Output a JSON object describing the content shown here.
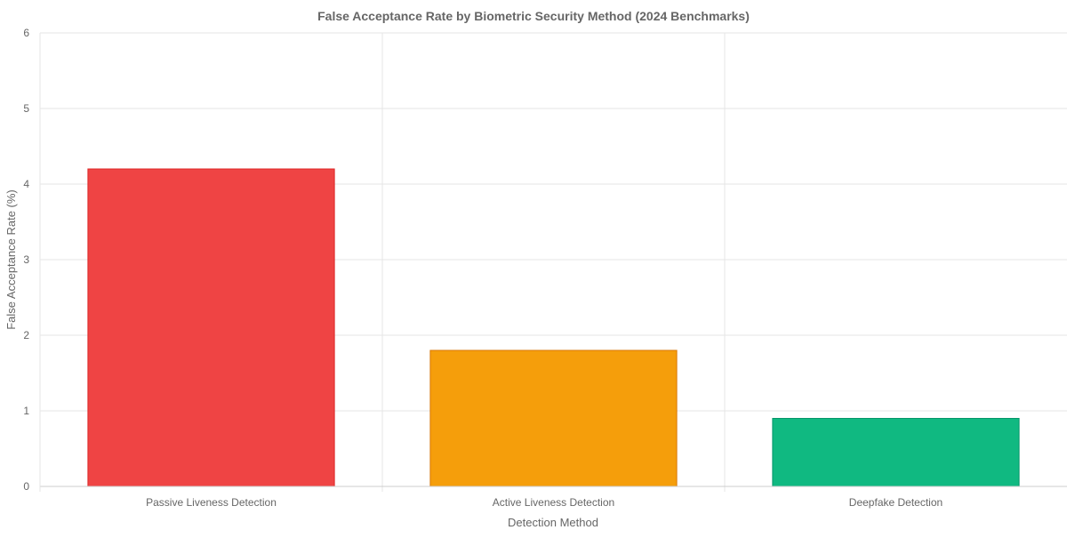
{
  "chart_data": {
    "type": "bar",
    "title": "False Acceptance Rate by Biometric Security Method (2024 Benchmarks)",
    "xlabel": "Detection Method",
    "ylabel": "False Acceptance Rate (%)",
    "categories": [
      "Passive Liveness Detection",
      "Active Liveness Detection",
      "Deepfake Detection"
    ],
    "values": [
      4.2,
      1.8,
      0.9
    ],
    "colors": [
      "#ef4444",
      "#f59e0b",
      "#10b981"
    ],
    "border_colors": [
      "#dc2626",
      "#d97706",
      "#059669"
    ],
    "ylim": [
      0,
      6
    ],
    "yticks": [
      0,
      1,
      2,
      3,
      4,
      5,
      6
    ],
    "grid": true,
    "legend": "none"
  }
}
